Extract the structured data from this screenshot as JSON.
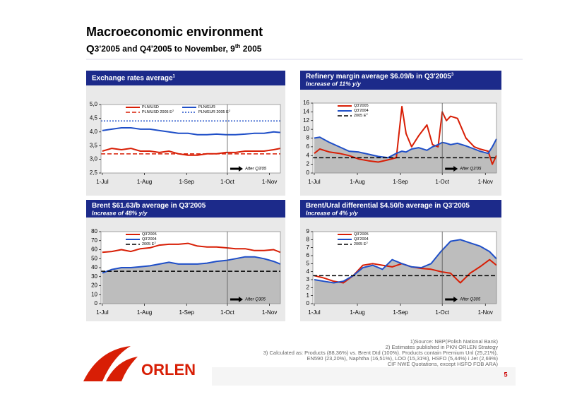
{
  "header": {
    "title": "Macroeconomic environment",
    "subtitle_parts": [
      "Q",
      "3'2005 and Q4'2005 to November, 9",
      "th",
      " 2005"
    ]
  },
  "chart_data": [
    {
      "type": "line",
      "title": "Exchange rates average",
      "title_note": "1",
      "x": [
        "1-Jul",
        "8-Jul",
        "15-Jul",
        "22-Jul",
        "29-Jul",
        "5-Aug",
        "12-Aug",
        "19-Aug",
        "26-Aug",
        "2-Sep",
        "9-Sep",
        "16-Sep",
        "23-Sep",
        "30-Sep",
        "7-Oct",
        "14-Oct",
        "21-Oct",
        "28-Oct",
        "4-Nov",
        "9-Nov"
      ],
      "xlim": [
        "30-Jun",
        "9-Nov"
      ],
      "xticks": [
        "1-Jul",
        "1-Aug",
        "1-Sep",
        "1-Oct",
        "1-Nov"
      ],
      "ylim": [
        2.5,
        5.0
      ],
      "yticks": [
        {
          "value": 2.5,
          "label": "2,5"
        },
        {
          "value": 3.0,
          "label": "3,0"
        },
        {
          "value": 3.5,
          "label": "3,5"
        },
        {
          "value": 4.0,
          "label": "4,0"
        },
        {
          "value": 4.5,
          "label": "4,5"
        },
        {
          "value": 5.0,
          "label": "5,0"
        }
      ],
      "series": [
        {
          "name": "PLN/USD",
          "color": "#d81e05",
          "values": [
            3.3,
            3.4,
            3.35,
            3.4,
            3.3,
            3.3,
            3.25,
            3.3,
            3.2,
            3.15,
            3.15,
            3.2,
            3.2,
            3.25,
            3.25,
            3.3,
            3.3,
            3.3,
            3.35,
            3.4
          ]
        },
        {
          "name": "PLN/USD 2005 E",
          "note": "2",
          "color": "#d81e05",
          "style": "dashed",
          "value": 3.2
        },
        {
          "name": "PLN/EUR",
          "color": "#1f4fc8",
          "values": [
            4.05,
            4.1,
            4.15,
            4.15,
            4.1,
            4.1,
            4.05,
            4.0,
            3.95,
            3.95,
            3.9,
            3.9,
            3.92,
            3.9,
            3.9,
            3.92,
            3.95,
            3.95,
            4.0,
            3.98
          ]
        },
        {
          "name": "PLN/EUR 2005 E",
          "note": "2",
          "color": "#1f4fc8",
          "style": "dotted",
          "value": 4.4
        }
      ],
      "marker_x": "1-Oct",
      "annotation": "After Q3'05"
    },
    {
      "type": "line",
      "title": "Refinery margin average $6.09/b in Q3'2005",
      "title_note": "3",
      "subtitle": "Increase of 11%  y/y",
      "x": [
        "1-Jul",
        "5-Jul",
        "12-Jul",
        "19-Jul",
        "26-Jul",
        "2-Aug",
        "9-Aug",
        "16-Aug",
        "23-Aug",
        "29-Aug",
        "2-Sep",
        "5-Sep",
        "9-Sep",
        "14-Sep",
        "20-Sep",
        "24-Sep",
        "28-Sep",
        "1-Oct",
        "4-Oct",
        "7-Oct",
        "12-Oct",
        "18-Oct",
        "24-Oct",
        "28-Oct",
        "3-Nov",
        "6-Nov",
        "9-Nov"
      ],
      "xlim": [
        "30-Jun",
        "9-Nov"
      ],
      "xticks": [
        "1-Jul",
        "1-Aug",
        "1-Sep",
        "1-Oct",
        "1-Nov"
      ],
      "ylim": [
        0,
        16
      ],
      "yticks": [
        0,
        2,
        4,
        6,
        8,
        10,
        12,
        14,
        16
      ],
      "series": [
        {
          "name": "Q3'2005",
          "color": "#d81e05",
          "values": [
            4.5,
            5.5,
            4.8,
            4.5,
            4.0,
            3.2,
            2.8,
            2.5,
            3.0,
            3.5,
            15.2,
            9,
            6,
            8.5,
            11,
            6.5,
            6,
            14,
            12,
            13,
            12.5,
            8,
            6,
            5.5,
            5,
            2,
            4
          ]
        },
        {
          "name": "Q3'2004",
          "color": "#1f4fc8",
          "fill": "#bdbdbd",
          "values": [
            8,
            8.2,
            7,
            6,
            5,
            4.8,
            4.3,
            3.8,
            3.5,
            4.5,
            5,
            4.8,
            5.5,
            5.8,
            5.2,
            6,
            6.5,
            7,
            6.8,
            6.5,
            6.8,
            6.2,
            5.5,
            5,
            4.5,
            6,
            7.8
          ]
        },
        {
          "name": "2005 E",
          "note": "2",
          "color": "#000000",
          "style": "dashed",
          "value": 3.5
        }
      ],
      "marker_x": "1-Oct",
      "annotation": "After Q3'05"
    },
    {
      "type": "line",
      "title": "Brent  $61.63/b average in Q3'2005",
      "subtitle": "Increase of 48% y/y",
      "x": [
        "1-Jul",
        "8-Jul",
        "15-Jul",
        "22-Jul",
        "29-Jul",
        "5-Aug",
        "12-Aug",
        "19-Aug",
        "26-Aug",
        "2-Sep",
        "9-Sep",
        "16-Sep",
        "23-Sep",
        "30-Sep",
        "7-Oct",
        "14-Oct",
        "21-Oct",
        "28-Oct",
        "4-Nov",
        "9-Nov"
      ],
      "xlim": [
        "30-Jun",
        "9-Nov"
      ],
      "xticks": [
        "1-Jul",
        "1-Aug",
        "1-Sep",
        "1-Oct",
        "1-Nov"
      ],
      "ylim": [
        0,
        80
      ],
      "yticks": [
        0,
        10,
        20,
        30,
        40,
        50,
        60,
        70,
        80
      ],
      "series": [
        {
          "name": "Q3'2005",
          "color": "#d81e05",
          "values": [
            57,
            58,
            60,
            58,
            61,
            62,
            65,
            66,
            66,
            67,
            64,
            63,
            63,
            62,
            61,
            61,
            59,
            59,
            60,
            57
          ]
        },
        {
          "name": "Q3'2004",
          "color": "#1f4fc8",
          "fill": "#bdbdbd",
          "values": [
            34,
            38,
            40,
            40,
            41,
            42,
            44,
            46,
            44,
            44,
            44,
            45,
            47,
            48,
            50,
            52,
            52,
            50,
            47,
            44
          ]
        },
        {
          "name": "2005 E",
          "note": "2",
          "color": "#000000",
          "style": "dashed",
          "value": 36
        }
      ],
      "marker_x": "1-Oct",
      "annotation": "After Q305"
    },
    {
      "type": "line",
      "title": "Brent/Ural differential $4.50/b average in Q3'2005",
      "subtitle": "Increase of 4% y/y",
      "x": [
        "1-Jul",
        "8-Jul",
        "15-Jul",
        "22-Jul",
        "29-Jul",
        "5-Aug",
        "12-Aug",
        "19-Aug",
        "26-Aug",
        "2-Sep",
        "9-Sep",
        "16-Sep",
        "23-Sep",
        "30-Sep",
        "7-Oct",
        "14-Oct",
        "21-Oct",
        "28-Oct",
        "4-Nov",
        "9-Nov"
      ],
      "xlim": [
        "30-Jun",
        "9-Nov"
      ],
      "xticks": [
        "1-Jul",
        "1-Aug",
        "1-Sep",
        "1-Oct",
        "1-Nov"
      ],
      "ylim": [
        0,
        9
      ],
      "yticks": [
        0,
        1,
        2,
        3,
        4,
        5,
        6,
        7,
        8,
        9
      ],
      "series": [
        {
          "name": "Q3'2005",
          "color": "#d81e05",
          "values": [
            3.5,
            3.2,
            2.8,
            2.6,
            3.5,
            4.8,
            5.0,
            4.8,
            4.6,
            5.0,
            4.6,
            4.4,
            4.3,
            4.0,
            3.8,
            2.6,
            3.8,
            4.6,
            5.5,
            4.8
          ]
        },
        {
          "name": "Q3'2004",
          "color": "#1f4fc8",
          "fill": "#bdbdbd",
          "values": [
            3.0,
            2.8,
            2.6,
            2.8,
            3.5,
            4.5,
            4.8,
            4.3,
            5.5,
            5.0,
            4.6,
            4.5,
            5.0,
            6.5,
            7.8,
            8.0,
            7.6,
            7.2,
            6.5,
            5.6
          ]
        },
        {
          "name": "2005 E",
          "note": "2",
          "color": "#000000",
          "style": "dashed",
          "value": 3.5
        }
      ],
      "marker_x": "1-Oct",
      "annotation": "After Q305"
    }
  ],
  "footnotes": [
    "1)Source: NBP(Polish National Bank)",
    "2) Estimates published in PKN ORLEN Strategy",
    "3) Calculated as: Products (88,36%) vs. Brent Dtd (100%). Products contain Premium Unl (25,21%),",
    "EN590 (23,20%),  Naphtha (16,51%), LOO (15,31%), HSFO (5,44%) i Jet (2,69%)",
    "CIF NWE Quotations, except HSFO FOB ARA)"
  ],
  "logo": "ORLEN",
  "page_number": "5"
}
